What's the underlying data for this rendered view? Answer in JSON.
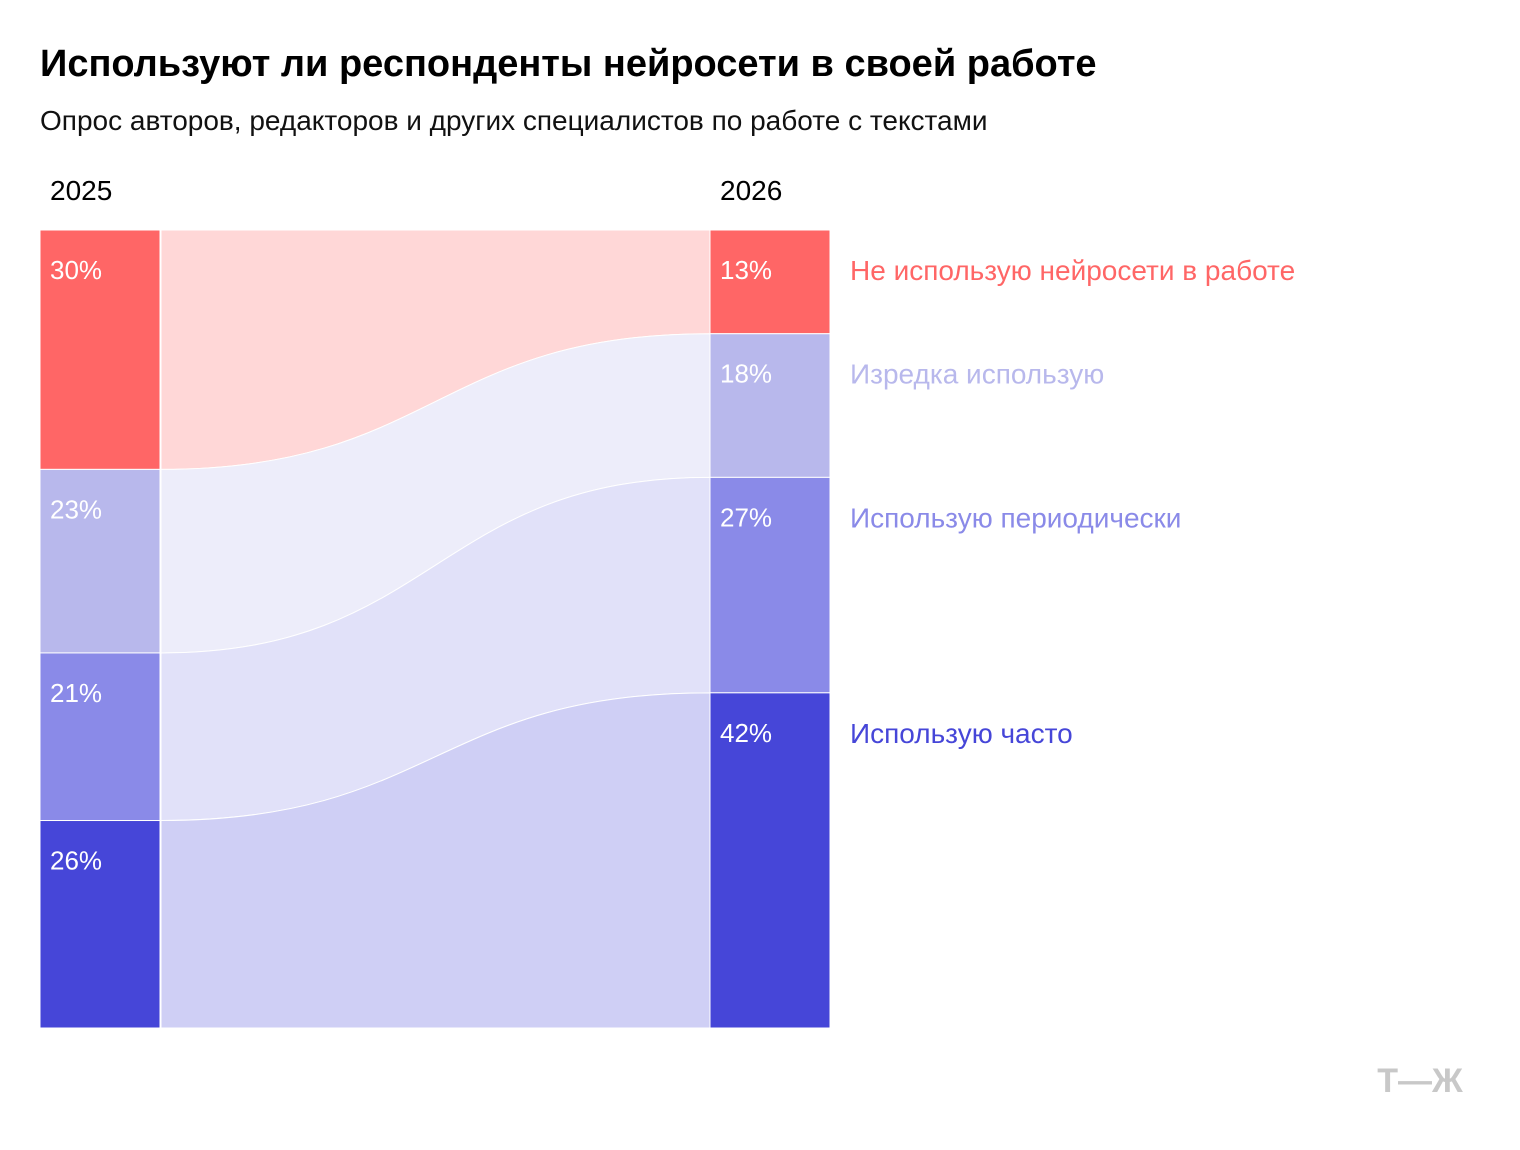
{
  "chart_data": {
    "type": "sankey",
    "title": "Используют ли респонденты нейросети в своей работе",
    "subtitle": "Опрос авторов, редакторов и других специалистов по работе с текстами",
    "categories": [
      "2025",
      "2026"
    ],
    "series": [
      {
        "name": "Не использую нейросети в работе",
        "color": "#ff6666",
        "values": [
          30,
          13
        ],
        "value_labels": [
          "30%",
          "13%"
        ]
      },
      {
        "name": "Изредка использую",
        "color": "#b8b8ec",
        "values": [
          23,
          18
        ],
        "value_labels": [
          "23%",
          "18%"
        ]
      },
      {
        "name": "Использую периодически",
        "color": "#8a8ae8",
        "values": [
          21,
          27
        ],
        "value_labels": [
          "21%",
          "27%"
        ]
      },
      {
        "name": "Использую часто",
        "color": "#4646d8",
        "values": [
          26,
          42
        ],
        "value_labels": [
          "26%",
          "42%"
        ]
      }
    ],
    "logo": "Т—Ж"
  }
}
